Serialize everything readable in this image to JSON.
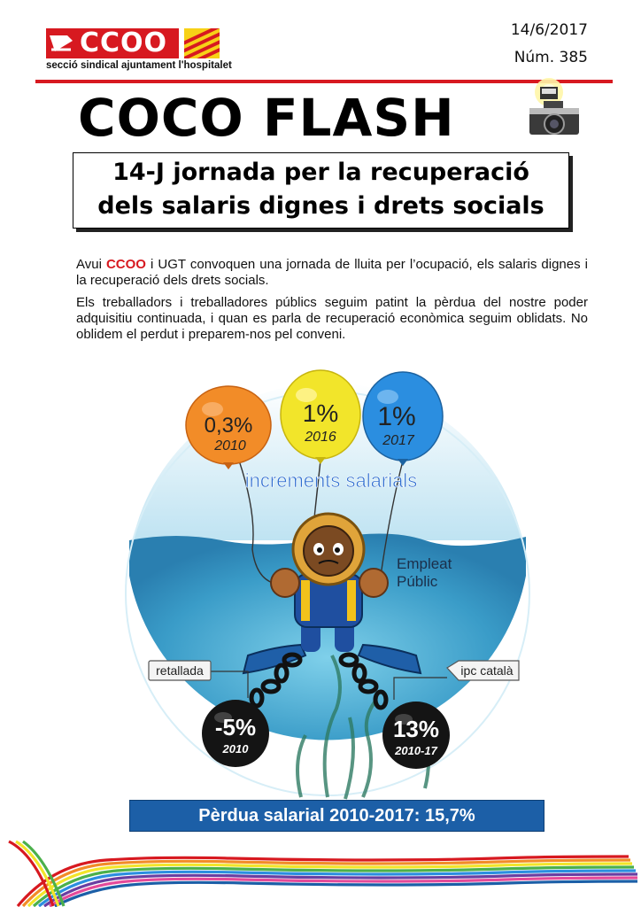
{
  "header": {
    "logo_text": "CCOO",
    "logo_subtitle": "secció sindical ajuntament l'hospitalet",
    "date": "14/6/2017",
    "issue": "Núm. 385",
    "masthead": "COCO FLASH"
  },
  "headline": {
    "line1": "14-J jornada per la recuperació",
    "line2": "dels salaris dignes i drets socials"
  },
  "body": {
    "p1_before": "Avui ",
    "p1_ccoo": "CCOO",
    "p1_after": " i UGT convoquen una jornada de lluita per l’ocupació, els salaris dignes i la recuperació dels drets socials.",
    "p2": "Els treballadors i treballadores públics seguim patint la pèrdua del nostre poder adquisitiu continuada, i quan es parla de recuperació econòmica seguim oblidats.  No oblidem el perdut i preparem-nos pel conveni."
  },
  "illustration": {
    "balloons": [
      {
        "value": "0,3%",
        "year": "2010",
        "color": "#f28c28"
      },
      {
        "value": "1%",
        "year": "2016",
        "color": "#f2e52a"
      },
      {
        "value": "1%",
        "year": "2017",
        "color": "#2b8ee0"
      }
    ],
    "caption": "increments salarials",
    "diver_label_1": "Empleat",
    "diver_label_2": "Públic",
    "left_weight": {
      "tag": "retallada",
      "value": "-5%",
      "year": "2010"
    },
    "right_weight": {
      "tag": "ipc català",
      "value": "13%",
      "year": "2010-17"
    }
  },
  "footer_bar": "Pèrdua salarial 2010-2017:  15,7%",
  "colors": {
    "brand_red": "#d71920",
    "sea_blue": "#5fb4d8",
    "bar_blue": "#1c5fa7"
  }
}
